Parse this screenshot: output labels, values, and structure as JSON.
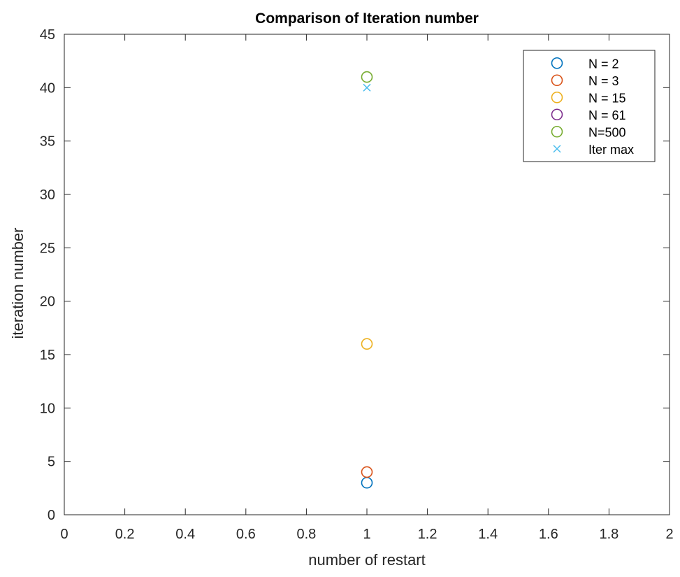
{
  "chart_data": {
    "type": "scatter",
    "title": "Comparison of Iteration number",
    "xlabel": "number of restart",
    "ylabel": "iteration number",
    "xlim": [
      0,
      2
    ],
    "ylim": [
      0,
      45
    ],
    "x_ticks": [
      0,
      0.2,
      0.4,
      0.6,
      0.8,
      1,
      1.2,
      1.4,
      1.6,
      1.8,
      2
    ],
    "x_tick_labels": [
      "0",
      "0.2",
      "0.4",
      "0.6",
      "0.8",
      "1",
      "1.2",
      "1.4",
      "1.6",
      "1.8",
      "2"
    ],
    "y_ticks": [
      0,
      5,
      10,
      15,
      20,
      25,
      30,
      35,
      40,
      45
    ],
    "y_tick_labels": [
      "0",
      "5",
      "10",
      "15",
      "20",
      "25",
      "30",
      "35",
      "40",
      "45"
    ],
    "grid": false,
    "legend_position": "top-right",
    "series": [
      {
        "name": "N = 2",
        "marker": "circle",
        "color": "#0072BD",
        "points": [
          {
            "x": 1,
            "y": 3
          }
        ]
      },
      {
        "name": "N = 3",
        "marker": "circle",
        "color": "#D95319",
        "points": [
          {
            "x": 1,
            "y": 4
          }
        ]
      },
      {
        "name": "N = 15",
        "marker": "circle",
        "color": "#EDB120",
        "points": [
          {
            "x": 1,
            "y": 16
          }
        ]
      },
      {
        "name": "N = 61",
        "marker": "circle",
        "color": "#7E2F8E",
        "points": []
      },
      {
        "name": "N=500",
        "marker": "circle",
        "color": "#77AC30",
        "points": [
          {
            "x": 1,
            "y": 41
          }
        ]
      },
      {
        "name": "Iter max",
        "marker": "x",
        "color": "#4DBEEE",
        "points": [
          {
            "x": 1,
            "y": 40
          }
        ]
      }
    ]
  }
}
